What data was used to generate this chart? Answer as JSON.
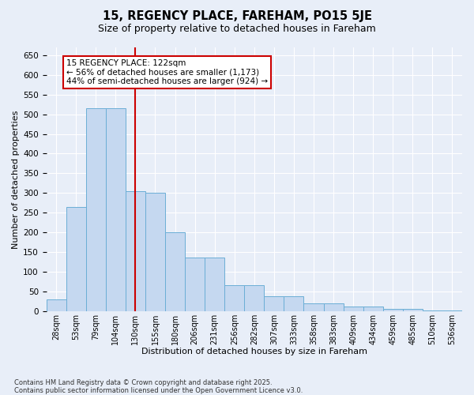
{
  "title": "15, REGENCY PLACE, FAREHAM, PO15 5JE",
  "subtitle": "Size of property relative to detached houses in Fareham",
  "xlabel": "Distribution of detached houses by size in Fareham",
  "ylabel": "Number of detached properties",
  "categories": [
    "28sqm",
    "53sqm",
    "79sqm",
    "104sqm",
    "130sqm",
    "155sqm",
    "180sqm",
    "206sqm",
    "231sqm",
    "256sqm",
    "282sqm",
    "307sqm",
    "333sqm",
    "358sqm",
    "383sqm",
    "409sqm",
    "434sqm",
    "459sqm",
    "485sqm",
    "510sqm",
    "536sqm"
  ],
  "values": [
    30,
    265,
    515,
    515,
    305,
    300,
    200,
    135,
    135,
    65,
    65,
    38,
    38,
    20,
    20,
    12,
    12,
    6,
    6,
    2,
    2
  ],
  "bar_color": "#c5d8f0",
  "bar_edge_color": "#6baed6",
  "ref_line_color": "#cc0000",
  "ref_line_x": 4.0,
  "annotation_text": "15 REGENCY PLACE: 122sqm\n← 56% of detached houses are smaller (1,173)\n44% of semi-detached houses are larger (924) →",
  "annotation_box_facecolor": "#ffffff",
  "annotation_box_edgecolor": "#cc0000",
  "ylim": [
    0,
    670
  ],
  "yticks": [
    0,
    50,
    100,
    150,
    200,
    250,
    300,
    350,
    400,
    450,
    500,
    550,
    600,
    650
  ],
  "background_color": "#e8eef8",
  "grid_color": "#ffffff",
  "footnote": "Contains HM Land Registry data © Crown copyright and database right 2025.\nContains public sector information licensed under the Open Government Licence v3.0."
}
